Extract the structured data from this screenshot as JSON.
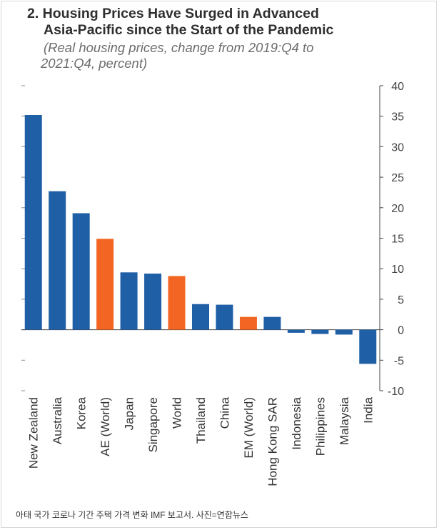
{
  "title_line1": "2. Housing Prices Have Surged in Advanced",
  "title_line2": "Asia-Pacific since the Start of the Pandemic",
  "subtitle_line1": "(Real housing prices, change from 2019:Q4 to",
  "subtitle_line2": "2021:Q4, percent)",
  "caption": "아태 국가 코로나 기간 주택 가격 변화 IMF 보고서. 사진=연합뉴스",
  "chart_data": {
    "type": "bar",
    "title": "Housing Prices Have Surged in Advanced Asia-Pacific since the Start of the Pandemic",
    "ylabel": "percent",
    "ylim": [
      -10,
      40
    ],
    "yticks": [
      40,
      35,
      30,
      25,
      20,
      15,
      10,
      5,
      0,
      -5,
      -10
    ],
    "categories": [
      "New Zealand",
      "Australia",
      "Korea",
      "AE (World)",
      "Japan",
      "Singapore",
      "World",
      "Thailand",
      "China",
      "EM (World)",
      "Hong Kong SAR",
      "Indonesia",
      "Philippines",
      "Malaysia",
      "India"
    ],
    "values": [
      35.2,
      22.7,
      19.1,
      14.9,
      9.4,
      9.2,
      8.8,
      4.2,
      4.1,
      2.1,
      2.1,
      -0.5,
      -0.7,
      -0.8,
      -5.6
    ],
    "colors": [
      "#1f5fa6",
      "#1f5fa6",
      "#1f5fa6",
      "#f26522",
      "#1f5fa6",
      "#1f5fa6",
      "#f26522",
      "#1f5fa6",
      "#1f5fa6",
      "#f26522",
      "#1f5fa6",
      "#1f5fa6",
      "#1f5fa6",
      "#1f5fa6",
      "#1f5fa6"
    ],
    "legend": "none",
    "grid": false
  }
}
